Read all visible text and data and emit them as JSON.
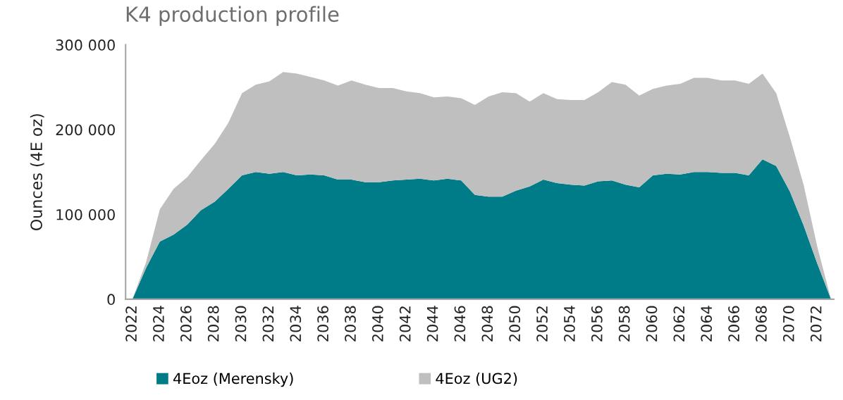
{
  "chart_data": {
    "type": "area",
    "stacked": true,
    "title": "K4 production profile",
    "ylabel": "Ounces (4E oz)",
    "x": [
      2022,
      2023,
      2024,
      2025,
      2026,
      2027,
      2028,
      2029,
      2030,
      2031,
      2032,
      2033,
      2034,
      2035,
      2036,
      2037,
      2038,
      2039,
      2040,
      2041,
      2042,
      2043,
      2044,
      2045,
      2046,
      2047,
      2048,
      2049,
      2050,
      2051,
      2052,
      2053,
      2054,
      2055,
      2056,
      2057,
      2058,
      2059,
      2060,
      2061,
      2062,
      2063,
      2064,
      2065,
      2066,
      2067,
      2068,
      2069,
      2070,
      2071,
      2072,
      2073
    ],
    "series": [
      {
        "name": "4Eoz (Merensky)",
        "color": "#007b88",
        "values": [
          0,
          37000,
          68000,
          76000,
          88000,
          105000,
          115000,
          130000,
          146000,
          150000,
          148000,
          150000,
          146000,
          147000,
          146000,
          141000,
          141000,
          138000,
          138000,
          140000,
          141000,
          142000,
          140000,
          142000,
          140000,
          123000,
          121000,
          121000,
          128000,
          133000,
          141000,
          137000,
          135000,
          134000,
          139000,
          140000,
          135000,
          132000,
          146000,
          148000,
          147000,
          150000,
          150000,
          149000,
          149000,
          146000,
          165000,
          157000,
          127000,
          87000,
          42000,
          0
        ]
      },
      {
        "name": "4Eoz (UG2)",
        "color": "#bfbfbf",
        "values": [
          0,
          7000,
          38000,
          54000,
          56000,
          59000,
          68000,
          78000,
          97000,
          103000,
          109000,
          118000,
          120000,
          115000,
          112000,
          111000,
          117000,
          115000,
          111000,
          109000,
          104000,
          101000,
          98000,
          97000,
          97000,
          106000,
          118000,
          123000,
          115000,
          100000,
          102000,
          99000,
          100000,
          101000,
          105000,
          116000,
          118000,
          108000,
          102000,
          104000,
          107000,
          111000,
          111000,
          109000,
          109000,
          108000,
          101000,
          86000,
          64000,
          48000,
          20000,
          0
        ]
      }
    ],
    "xlim": [
      2021.5,
      2073.2
    ],
    "xticks": [
      2022,
      2024,
      2026,
      2028,
      2030,
      2032,
      2034,
      2036,
      2038,
      2040,
      2042,
      2044,
      2046,
      2048,
      2050,
      2052,
      2054,
      2056,
      2058,
      2060,
      2062,
      2064,
      2066,
      2068,
      2070,
      2072
    ],
    "ylim": [
      0,
      300000
    ],
    "yticks": [
      {
        "value": 0,
        "label": "0"
      },
      {
        "value": 100000,
        "label": "100 000"
      },
      {
        "value": 200000,
        "label": "200 000"
      },
      {
        "value": 300000,
        "label": "300 000"
      }
    ],
    "grid": false,
    "legend": "bottom"
  }
}
